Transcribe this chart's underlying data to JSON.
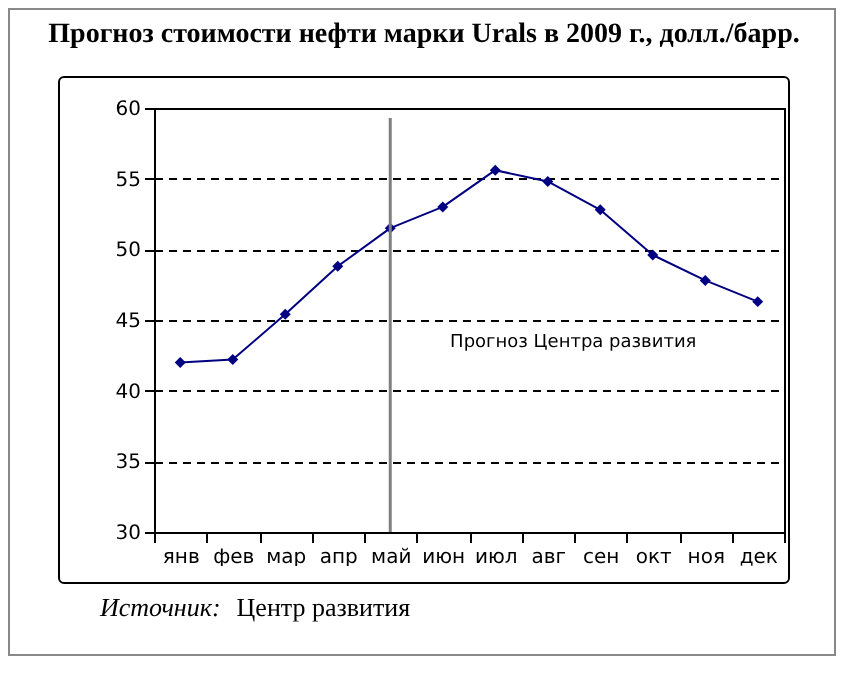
{
  "chart_data": {
    "type": "line",
    "title": "Прогноз стоимости нефти марки Urals в 2009 г., долл./барр.",
    "categories": [
      "янв",
      "фев",
      "мар",
      "апр",
      "май",
      "июн",
      "июл",
      "авг",
      "сен",
      "окт",
      "ноя",
      "дек"
    ],
    "series": [
      {
        "color": "#000080",
        "values": [
          42.0,
          42.2,
          45.4,
          48.8,
          51.5,
          53.0,
          55.6,
          54.8,
          52.8,
          49.6,
          47.8,
          46.3
        ]
      }
    ],
    "ylim": [
      30,
      60
    ],
    "yticks": [
      30,
      35,
      40,
      45,
      50,
      55,
      60
    ],
    "grid": "y",
    "marker": "diamond",
    "line_style": "solid",
    "legend": false,
    "ref_lines": [
      {
        "axis": "x",
        "value": "май",
        "color": "#808080"
      }
    ],
    "annotations": [
      "Прогноз Центра развития",
      "Источник: Центр развития"
    ]
  }
}
